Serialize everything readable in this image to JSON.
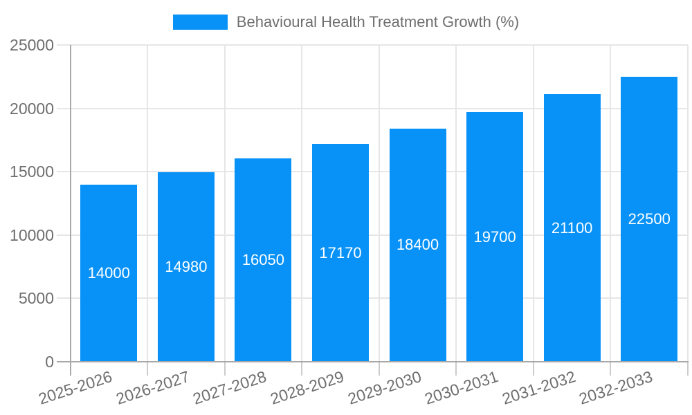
{
  "legend": {
    "label": "Behavioural Health Treatment Growth (%)"
  },
  "chart_data": {
    "type": "bar",
    "title": "Behavioural Health Treatment Growth (%)",
    "categories": [
      "2025-2026",
      "2026-2027",
      "2027-2028",
      "2028-2029",
      "2029-2030",
      "2030-2031",
      "2031-2032",
      "2032-2033"
    ],
    "series": [
      {
        "name": "Behavioural Health Treatment Growth (%)",
        "values": [
          14000,
          14980,
          16050,
          17170,
          18400,
          19700,
          21100,
          22500
        ]
      }
    ],
    "bar_labels": [
      "14000",
      "14980",
      "16050",
      "17170",
      "18400",
      "19700",
      "21100",
      "22500"
    ],
    "xlabel": "",
    "ylabel": "",
    "ylim": [
      0,
      25000
    ],
    "y_ticks": [
      0,
      5000,
      10000,
      15000,
      20000,
      25000
    ],
    "y_tick_labels": [
      "0",
      "5000",
      "10000",
      "15000",
      "20000",
      "25000"
    ],
    "grid": true,
    "legend_position": "top",
    "x_tick_rotation_deg": -18,
    "colors": {
      "bar": "#0892f8",
      "grid": "#e6e6e6",
      "axis": "#a8a8a8",
      "x_tick": "#cccccc",
      "text": "#6e6e6e",
      "bar_label": "#ffffff",
      "background": "#ffffff"
    }
  }
}
